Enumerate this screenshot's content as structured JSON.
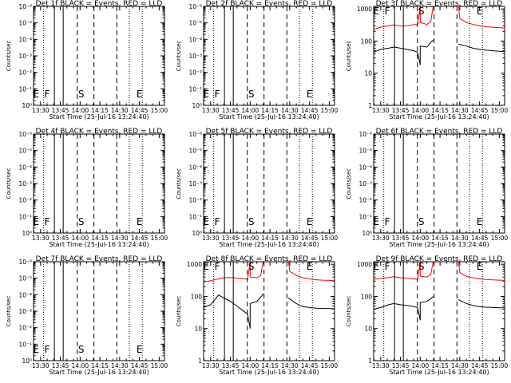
{
  "chart_data": [
    {
      "type": "line",
      "title": "Det 1f BLACK = Events, RED = LLD",
      "xlabel": "Start Time (25-Jul-16 13:24:40)",
      "ylabel": "Counts/sec",
      "yscale": "log",
      "ytick_labels": [
        "10⁰",
        "10⁻¹",
        "10⁻²",
        "10⁻³",
        "10⁻⁴",
        "10⁻⁵",
        "10⁻⁶"
      ],
      "xlim": [
        "13:24:40",
        "15:04:00"
      ],
      "xtick_labels": [
        "13:30",
        "13:45",
        "14:00",
        "14:15",
        "14:30",
        "14:45",
        "15:00"
      ],
      "markers": [
        "E",
        "F",
        "S",
        "E"
      ],
      "series": []
    },
    {
      "type": "line",
      "title": "Det 2f BLACK = Events, RED = LLD",
      "xlabel": "Start Time (25-Jul-16 13:24:40)",
      "ylabel": "Counts/sec",
      "yscale": "log",
      "ytick_labels": [
        "10⁰",
        "10⁻¹",
        "10⁻²",
        "10⁻³",
        "10⁻⁴",
        "10⁻⁵",
        "10⁻⁶"
      ],
      "xlim": [
        "13:24:40",
        "15:04:00"
      ],
      "xtick_labels": [
        "13:30",
        "13:45",
        "14:00",
        "14:15",
        "14:30",
        "14:45",
        "15:00"
      ],
      "markers": [
        "E",
        "F",
        "S",
        "E"
      ],
      "series": []
    },
    {
      "type": "line",
      "title": "Det 3f BLACK = Events, RED = LLD",
      "xlabel": "Start Time (25-Jul-16 13:24:40)",
      "ylabel": "Counts/sec",
      "yscale": "log",
      "ytick_labels": [
        "1",
        "10",
        "100",
        "1000"
      ],
      "ylim": [
        1,
        1200
      ],
      "xlim": [
        "13:24:40",
        "15:04:00"
      ],
      "xtick_labels": [
        "13:30",
        "13:45",
        "14:00",
        "14:15",
        "14:30",
        "14:45",
        "15:00"
      ],
      "markers": [
        "E",
        "F",
        "S",
        "E"
      ],
      "series": [
        {
          "color": "#ff0000",
          "segments": [
            [
              [
                "13:24:40",
                230
              ],
              [
                "13:30",
                270
              ],
              [
                "13:36",
                300
              ],
              [
                "13:40",
                320
              ],
              [
                "13:45",
                290
              ],
              [
                "13:50",
                300
              ],
              [
                "13:54",
                320
              ],
              [
                "13:58",
                330
              ],
              [
                "14:00",
                1100
              ],
              [
                "14:00",
                380
              ],
              [
                "14:05",
                330
              ],
              [
                "14:08",
                400
              ],
              [
                "14:10",
                1300
              ]
            ],
            [
              [
                "14:29",
                1300
              ],
              [
                "14:30",
                500
              ],
              [
                "14:35",
                380
              ],
              [
                "14:40",
                330
              ],
              [
                "14:45",
                300
              ],
              [
                "14:50",
                280
              ],
              [
                "14:55",
                270
              ],
              [
                "15:00",
                260
              ],
              [
                "15:04",
                255
              ]
            ]
          ]
        },
        {
          "color": "#000000",
          "segments": [
            [
              [
                "13:24:40",
                45
              ],
              [
                "13:30",
                55
              ],
              [
                "13:36",
                60
              ],
              [
                "13:40",
                65
              ],
              [
                "13:45",
                60
              ],
              [
                "13:50",
                55
              ],
              [
                "13:55",
                50
              ],
              [
                "13:58",
                45
              ],
              [
                "14:00",
                18
              ],
              [
                "14:00",
                70
              ],
              [
                "14:05",
                65
              ],
              [
                "14:08",
                90
              ],
              [
                "14:10",
                110
              ]
            ],
            [
              [
                "14:29",
                80
              ],
              [
                "14:35",
                70
              ],
              [
                "14:40",
                60
              ],
              [
                "14:45",
                55
              ],
              [
                "14:50",
                52
              ],
              [
                "14:55",
                50
              ],
              [
                "15:00",
                48
              ],
              [
                "15:04",
                47
              ]
            ]
          ]
        }
      ]
    },
    {
      "type": "line",
      "title": "Det 4f BLACK = Events, RED = LLD",
      "xlabel": "Start Time (25-Jul-16 13:24:40)",
      "ylabel": "Counts/sec",
      "yscale": "log",
      "ytick_labels": [
        "10⁰",
        "10⁻¹",
        "10⁻²",
        "10⁻³",
        "10⁻⁴",
        "10⁻⁵",
        "10⁻⁶"
      ],
      "xlim": [
        "13:24:40",
        "15:04:00"
      ],
      "xtick_labels": [
        "13:30",
        "13:45",
        "14:00",
        "14:15",
        "14:30",
        "14:45",
        "15:00"
      ],
      "markers": [
        "E",
        "F",
        "S",
        "E"
      ],
      "series": []
    },
    {
      "type": "line",
      "title": "Det 5f BLACK = Events, RED = LLD",
      "xlabel": "Start Time (25-Jul-16 13:24:40)",
      "ylabel": "Counts/sec",
      "yscale": "log",
      "ytick_labels": [
        "10⁰",
        "10⁻¹",
        "10⁻²",
        "10⁻³",
        "10⁻⁴",
        "10⁻⁵",
        "10⁻⁶"
      ],
      "xlim": [
        "13:24:40",
        "15:04:00"
      ],
      "xtick_labels": [
        "13:30",
        "13:45",
        "14:00",
        "14:15",
        "14:30",
        "14:45",
        "15:00"
      ],
      "markers": [
        "E",
        "F",
        "S",
        "E"
      ],
      "series": []
    },
    {
      "type": "line",
      "title": "Det 6f BLACK = Events, RED = LLD",
      "xlabel": "Start Time (25-Jul-16 13:24:40)",
      "ylabel": "Counts/sec",
      "yscale": "log",
      "ytick_labels": [
        "10⁰",
        "10⁻¹",
        "10⁻²",
        "10⁻³",
        "10⁻⁴",
        "10⁻⁵",
        "10⁻⁶"
      ],
      "xlim": [
        "13:24:40",
        "15:04:00"
      ],
      "xtick_labels": [
        "13:30",
        "13:45",
        "14:00",
        "14:15",
        "14:30",
        "14:45",
        "15:00"
      ],
      "markers": [
        "E",
        "F",
        "S",
        "E"
      ],
      "series": []
    },
    {
      "type": "line",
      "title": "Det 7f BLACK = Events, RED = LLD",
      "xlabel": "Start Time (25-Jul-16 13:24:40)",
      "ylabel": "Counts/sec",
      "yscale": "log",
      "ytick_labels": [
        "10⁰",
        "10⁻¹",
        "10⁻²",
        "10⁻³",
        "10⁻⁴",
        "10⁻⁵",
        "10⁻⁶"
      ],
      "xlim": [
        "13:24:40",
        "15:04:00"
      ],
      "xtick_labels": [
        "13:30",
        "13:45",
        "14:00",
        "14:15",
        "14:30",
        "14:45",
        "15:00"
      ],
      "markers": [
        "E",
        "F",
        "S",
        "E"
      ],
      "series": []
    },
    {
      "type": "line",
      "title": "Det 8f BLACK = Events, RED = LLD",
      "xlabel": "Start Time (25-Jul-16 13:24:40)",
      "ylabel": "Counts/sec",
      "yscale": "log",
      "ytick_labels": [
        "1",
        "10",
        "100",
        "1000"
      ],
      "ylim": [
        1,
        1200
      ],
      "xlim": [
        "13:24:40",
        "15:04:00"
      ],
      "xtick_labels": [
        "13:30",
        "13:45",
        "14:00",
        "14:15",
        "14:30",
        "14:45",
        "15:00"
      ],
      "markers": [
        "E",
        "F",
        "S",
        "E"
      ],
      "series": [
        {
          "color": "#ff0000",
          "segments": [
            [
              [
                "13:24:40",
                280
              ],
              [
                "13:30",
                310
              ],
              [
                "13:36",
                350
              ],
              [
                "13:40",
                380
              ],
              [
                "13:45",
                390
              ],
              [
                "13:50",
                370
              ],
              [
                "13:55",
                350
              ],
              [
                "13:58",
                340
              ],
              [
                "14:00",
                1100
              ],
              [
                "14:00",
                400
              ],
              [
                "14:05",
                380
              ],
              [
                "14:08",
                450
              ],
              [
                "14:10",
                1300
              ]
            ],
            [
              [
                "14:29",
                1300
              ],
              [
                "14:30",
                600
              ],
              [
                "14:35",
                450
              ],
              [
                "14:40",
                380
              ],
              [
                "14:45",
                350
              ],
              [
                "14:50",
                330
              ],
              [
                "14:55",
                320
              ],
              [
                "15:00",
                315
              ],
              [
                "15:04",
                310
              ]
            ]
          ]
        },
        {
          "color": "#000000",
          "segments": [
            [
              [
                "13:24:40",
                45
              ],
              [
                "13:30",
                55
              ],
              [
                "13:36",
                110
              ],
              [
                "13:40",
                90
              ],
              [
                "13:45",
                70
              ],
              [
                "13:50",
                50
              ],
              [
                "13:55",
                35
              ],
              [
                "13:58",
                28
              ],
              [
                "14:00",
                10
              ],
              [
                "14:00",
                60
              ],
              [
                "14:05",
                70
              ],
              [
                "14:08",
                95
              ],
              [
                "14:10",
                120
              ]
            ],
            [
              [
                "14:29",
                90
              ],
              [
                "14:35",
                60
              ],
              [
                "14:40",
                48
              ],
              [
                "14:45",
                45
              ],
              [
                "14:50",
                43
              ],
              [
                "14:55",
                42
              ],
              [
                "15:00",
                42
              ],
              [
                "15:04",
                41
              ]
            ]
          ]
        }
      ]
    },
    {
      "type": "line",
      "title": "Det 9f BLACK = Events, RED = LLD",
      "xlabel": "Start Time (25-Jul-16 13:24:40)",
      "ylabel": "Counts/sec",
      "yscale": "log",
      "ytick_labels": [
        "1",
        "10",
        "100",
        "1000"
      ],
      "ylim": [
        1,
        1200
      ],
      "xlim": [
        "13:24:40",
        "15:04:00"
      ],
      "xtick_labels": [
        "13:30",
        "13:45",
        "14:00",
        "14:15",
        "14:30",
        "14:45",
        "15:00"
      ],
      "markers": [
        "E",
        "F",
        "S",
        "E"
      ],
      "series": [
        {
          "color": "#ff0000",
          "segments": [
            [
              [
                "13:24:40",
                340
              ],
              [
                "13:30",
                360
              ],
              [
                "13:36",
                390
              ],
              [
                "13:40",
                410
              ],
              [
                "13:45",
                380
              ],
              [
                "13:50",
                370
              ],
              [
                "13:55",
                350
              ],
              [
                "13:58",
                340
              ],
              [
                "14:00",
                1100
              ],
              [
                "14:00",
                430
              ],
              [
                "14:05",
                400
              ],
              [
                "14:08",
                480
              ],
              [
                "14:10",
                1300
              ]
            ],
            [
              [
                "14:29",
                1300
              ],
              [
                "14:30",
                550
              ],
              [
                "14:35",
                420
              ],
              [
                "14:40",
                380
              ],
              [
                "14:45",
                350
              ],
              [
                "14:50",
                335
              ],
              [
                "14:55",
                325
              ],
              [
                "15:00",
                320
              ],
              [
                "15:04",
                315
              ]
            ]
          ]
        },
        {
          "color": "#000000",
          "segments": [
            [
              [
                "13:24:40",
                40
              ],
              [
                "13:30",
                45
              ],
              [
                "13:36",
                55
              ],
              [
                "13:40",
                60
              ],
              [
                "13:45",
                55
              ],
              [
                "13:50",
                52
              ],
              [
                "13:55",
                48
              ],
              [
                "13:58",
                45
              ],
              [
                "14:00",
                18
              ],
              [
                "14:00",
                65
              ],
              [
                "14:05",
                70
              ],
              [
                "14:08",
                85
              ],
              [
                "14:10",
                100
              ]
            ],
            [
              [
                "14:29",
                80
              ],
              [
                "14:35",
                60
              ],
              [
                "14:40",
                52
              ],
              [
                "14:45",
                48
              ],
              [
                "14:50",
                46
              ],
              [
                "14:55",
                45
              ],
              [
                "15:00",
                44
              ],
              [
                "15:04",
                44
              ]
            ]
          ]
        }
      ]
    }
  ]
}
